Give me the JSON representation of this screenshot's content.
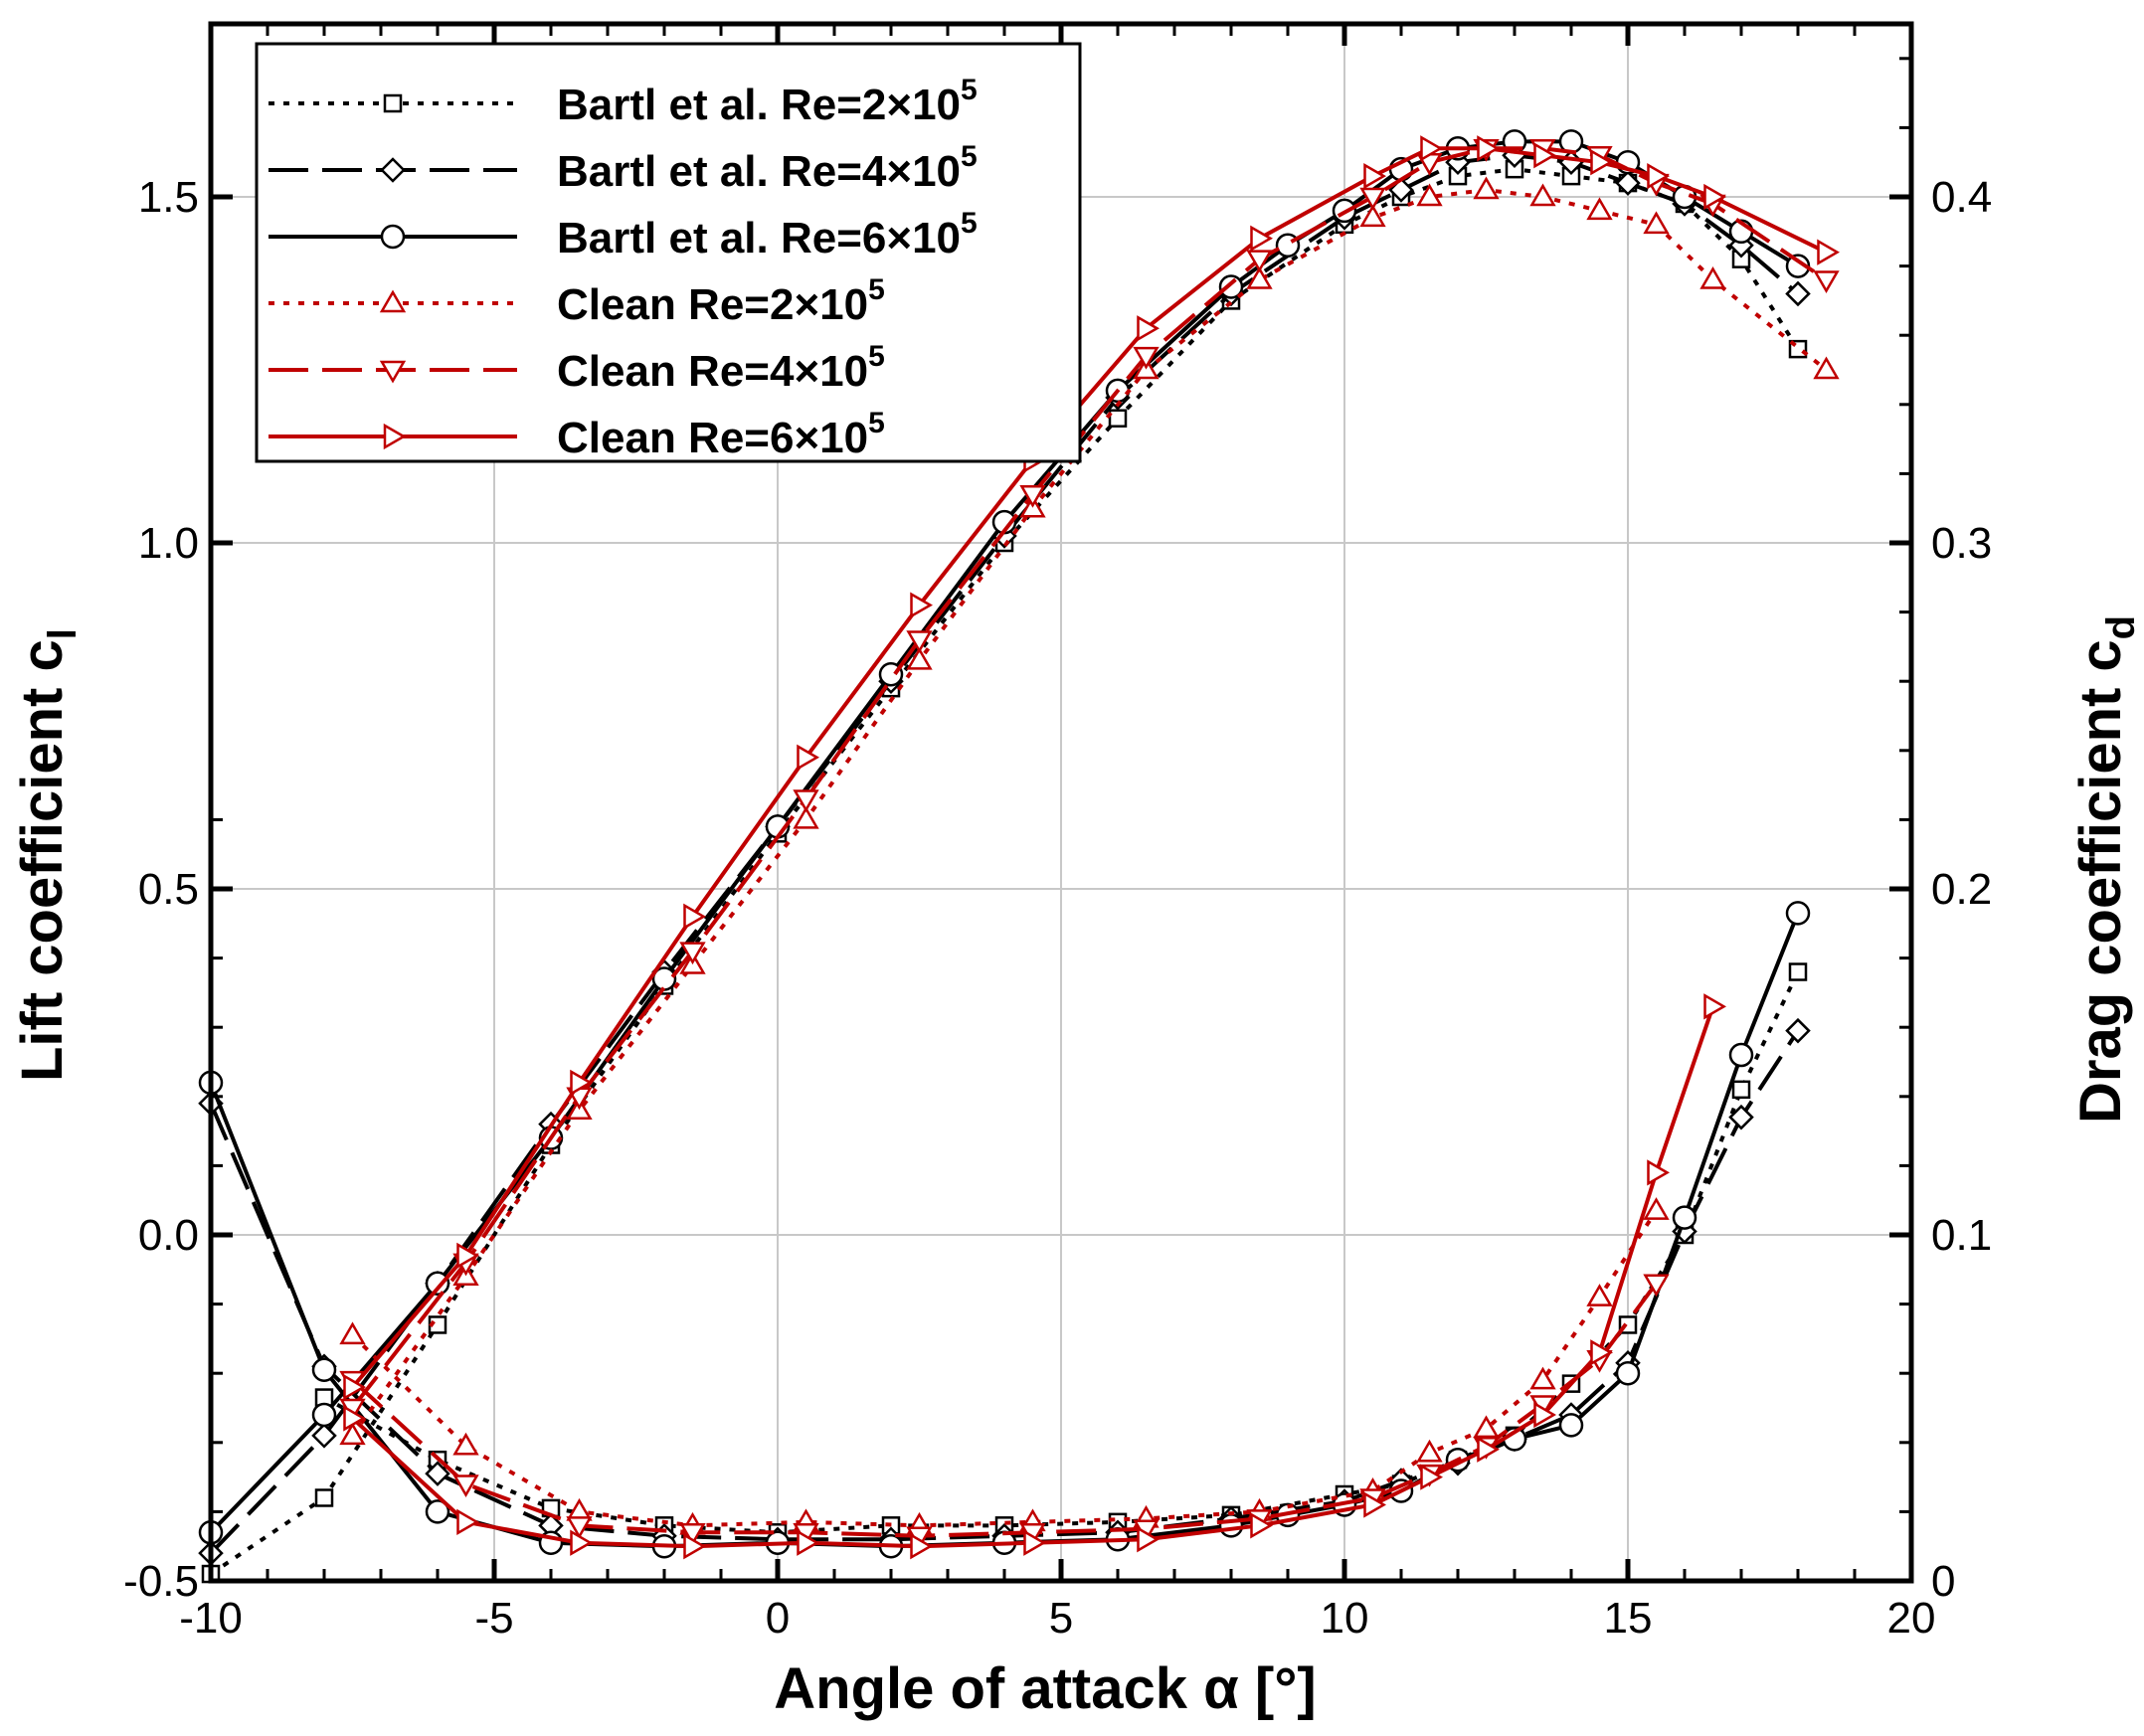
{
  "chart_data": {
    "type": "line",
    "title": "",
    "xlabel": "Angle of attack α [°]",
    "ylabel_left": "Lift coefficient c",
    "ylabel_left_sub": "l",
    "ylabel_right": "Drag coefficient c",
    "ylabel_right_sub": "d",
    "xlim": [
      -10,
      20
    ],
    "ylim_left": [
      -0.5,
      1.75
    ],
    "ylim_right": [
      0,
      0.45
    ],
    "xticks": [
      -10,
      -5,
      0,
      5,
      10,
      15,
      20
    ],
    "xtick_labels": [
      "-10",
      "-5",
      "0",
      "5",
      "10",
      "15",
      "20"
    ],
    "yticks_left": [
      -0.5,
      0.0,
      0.5,
      1.0,
      1.5
    ],
    "ytick_labels_left": [
      "-0.5",
      "0.0",
      "0.5",
      "1.0",
      "1.5"
    ],
    "yticks_right": [
      0,
      0.1,
      0.2,
      0.3,
      0.4
    ],
    "ytick_labels_right": [
      "0",
      "0.1",
      "0.2",
      "0.3",
      "0.4"
    ],
    "grid": true,
    "legend_position": "top-left",
    "series": [
      {
        "name": "Bartl et al. Re=2×10^5",
        "label_main": "Bartl et al. Re=2×10",
        "label_sup": "5",
        "color": "#000000",
        "dash": "dotted",
        "marker": "square",
        "cl": {
          "x": [
            -10,
            -8,
            -6,
            -4,
            -2,
            0,
            2,
            4,
            6,
            8,
            10,
            11,
            12,
            13,
            14,
            15,
            16,
            17,
            18
          ],
          "y": [
            -0.49,
            -0.38,
            -0.13,
            0.13,
            0.36,
            0.58,
            0.79,
            1.0,
            1.18,
            1.35,
            1.46,
            1.5,
            1.53,
            1.54,
            1.53,
            1.52,
            1.49,
            1.41,
            1.28
          ]
        },
        "cd": {
          "x": [
            -8,
            -6,
            -4,
            -2,
            0,
            2,
            4,
            6,
            8,
            10,
            11,
            12,
            13,
            14,
            15,
            16,
            17,
            18
          ],
          "y": [
            0.053,
            0.035,
            0.021,
            0.016,
            0.014,
            0.016,
            0.016,
            0.017,
            0.019,
            0.025,
            0.028,
            0.035,
            0.042,
            0.057,
            0.074,
            0.1,
            0.142,
            0.176
          ]
        }
      },
      {
        "name": "Bartl et al. Re=4×10^5",
        "label_main": "Bartl et al. Re=4×10",
        "label_sup": "5",
        "color": "#000000",
        "dash": "dashed",
        "marker": "diamond",
        "cl": {
          "x": [
            -10,
            -8,
            -6,
            -4,
            -2,
            0,
            2,
            4,
            6,
            8,
            10,
            11,
            12,
            13,
            14,
            15,
            16,
            17,
            18
          ],
          "y": [
            -0.46,
            -0.29,
            -0.07,
            0.16,
            0.38,
            0.59,
            0.8,
            1.01,
            1.21,
            1.36,
            1.47,
            1.51,
            1.55,
            1.56,
            1.55,
            1.52,
            1.49,
            1.43,
            1.36
          ]
        },
        "cd": {
          "x": [
            -10,
            -8,
            -6,
            -4,
            -2,
            0,
            2,
            4,
            6,
            8,
            10,
            11,
            12,
            13,
            14,
            15,
            16,
            17,
            18
          ],
          "y": [
            0.138,
            0.062,
            0.031,
            0.016,
            0.013,
            0.012,
            0.012,
            0.013,
            0.014,
            0.018,
            0.023,
            0.029,
            0.034,
            0.041,
            0.048,
            0.063,
            0.101,
            0.134,
            0.159
          ]
        }
      },
      {
        "name": "Bartl et al. Re=6×10^5",
        "label_main": "Bartl et al. Re=6×10",
        "label_sup": "5",
        "color": "#000000",
        "dash": "solid",
        "marker": "circle",
        "cl": {
          "x": [
            -10,
            -8,
            -6,
            -4,
            -2,
            0,
            2,
            4,
            6,
            8,
            9,
            10,
            11,
            12,
            13,
            14,
            15,
            16,
            17,
            18
          ],
          "y": [
            -0.43,
            -0.26,
            -0.07,
            0.14,
            0.37,
            0.59,
            0.81,
            1.03,
            1.22,
            1.37,
            1.43,
            1.48,
            1.54,
            1.57,
            1.58,
            1.58,
            1.55,
            1.5,
            1.45,
            1.4
          ]
        },
        "cd": {
          "x": [
            -10,
            -8,
            -6,
            -4,
            -2,
            0,
            2,
            4,
            6,
            8,
            9,
            10,
            11,
            12,
            13,
            14,
            15,
            16,
            17,
            18
          ],
          "y": [
            0.144,
            0.061,
            0.02,
            0.011,
            0.01,
            0.011,
            0.01,
            0.011,
            0.012,
            0.016,
            0.019,
            0.022,
            0.026,
            0.035,
            0.041,
            0.045,
            0.06,
            0.105,
            0.152,
            0.193
          ]
        }
      },
      {
        "name": "Clean Re=2×10^5",
        "label_main": "Clean Re=2×10",
        "label_sup": "5",
        "color": "#C00000",
        "dash": "dotted",
        "marker": "triangle-up",
        "cl": {
          "x": [
            -7.5,
            -5.5,
            -3.5,
            -1.5,
            0.5,
            2.5,
            4.5,
            6.5,
            8.5,
            10.5,
            11.5,
            12.5,
            13.5,
            14.5,
            15.5,
            16.5,
            18.5
          ],
          "y": [
            -0.29,
            -0.06,
            0.18,
            0.39,
            0.6,
            0.83,
            1.05,
            1.25,
            1.38,
            1.47,
            1.5,
            1.51,
            1.5,
            1.48,
            1.46,
            1.38,
            1.25
          ]
        },
        "cd": {
          "x": [
            -7.5,
            -5.5,
            -3.5,
            -1.5,
            0.5,
            2.5,
            4.5,
            6.5,
            8.5,
            10.5,
            11.5,
            12.5,
            13.5,
            14.5,
            15.5
          ],
          "y": [
            0.071,
            0.039,
            0.02,
            0.016,
            0.017,
            0.016,
            0.017,
            0.018,
            0.02,
            0.026,
            0.037,
            0.044,
            0.058,
            0.082,
            0.107
          ]
        }
      },
      {
        "name": "Clean Re=4×10^5",
        "label_main": "Clean Re=4×10",
        "label_sup": "5",
        "color": "#C00000",
        "dash": "dashed",
        "marker": "triangle-down",
        "cl": {
          "x": [
            -7.5,
            -5.5,
            -3.5,
            -1.5,
            0.5,
            2.5,
            4.5,
            6.5,
            8.5,
            10.5,
            11.5,
            12.5,
            13.5,
            14.5,
            15.5,
            16.5,
            18.5
          ],
          "y": [
            -0.25,
            -0.04,
            0.2,
            0.41,
            0.63,
            0.86,
            1.07,
            1.27,
            1.41,
            1.5,
            1.55,
            1.57,
            1.57,
            1.56,
            1.52,
            1.49,
            1.38
          ]
        },
        "cd": {
          "x": [
            -7.5,
            -5.5,
            -3.5,
            -1.5,
            0.5,
            2.5,
            4.5,
            6.5,
            8.5,
            10.5,
            11.5,
            12.5,
            13.5,
            14.5,
            15.5
          ],
          "y": [
            0.058,
            0.028,
            0.016,
            0.014,
            0.014,
            0.013,
            0.014,
            0.015,
            0.018,
            0.024,
            0.031,
            0.039,
            0.051,
            0.064,
            0.086
          ]
        }
      },
      {
        "name": "Clean Re=6×10^5",
        "label_main": "Clean Re=6×10",
        "label_sup": "5",
        "color": "#C00000",
        "dash": "solid",
        "marker": "triangle-right",
        "cl": {
          "x": [
            -7.5,
            -5.5,
            -3.5,
            -1.5,
            0.5,
            2.5,
            4.5,
            6.5,
            8.5,
            10.5,
            11.5,
            12.5,
            13.5,
            14.5,
            15.5,
            16.5,
            18.5
          ],
          "y": [
            -0.22,
            -0.03,
            0.22,
            0.46,
            0.69,
            0.91,
            1.12,
            1.31,
            1.44,
            1.53,
            1.57,
            1.57,
            1.56,
            1.55,
            1.53,
            1.5,
            1.42
          ]
        },
        "cd": {
          "x": [
            -7.5,
            -5.5,
            -3.5,
            -1.5,
            0.5,
            2.5,
            4.5,
            6.5,
            8.5,
            10.5,
            11.5,
            12.5,
            13.5,
            14.5,
            15.5,
            16.5
          ],
          "y": [
            0.047,
            0.017,
            0.011,
            0.01,
            0.011,
            0.01,
            0.011,
            0.012,
            0.016,
            0.022,
            0.03,
            0.038,
            0.048,
            0.066,
            0.118,
            0.166
          ]
        }
      }
    ]
  }
}
